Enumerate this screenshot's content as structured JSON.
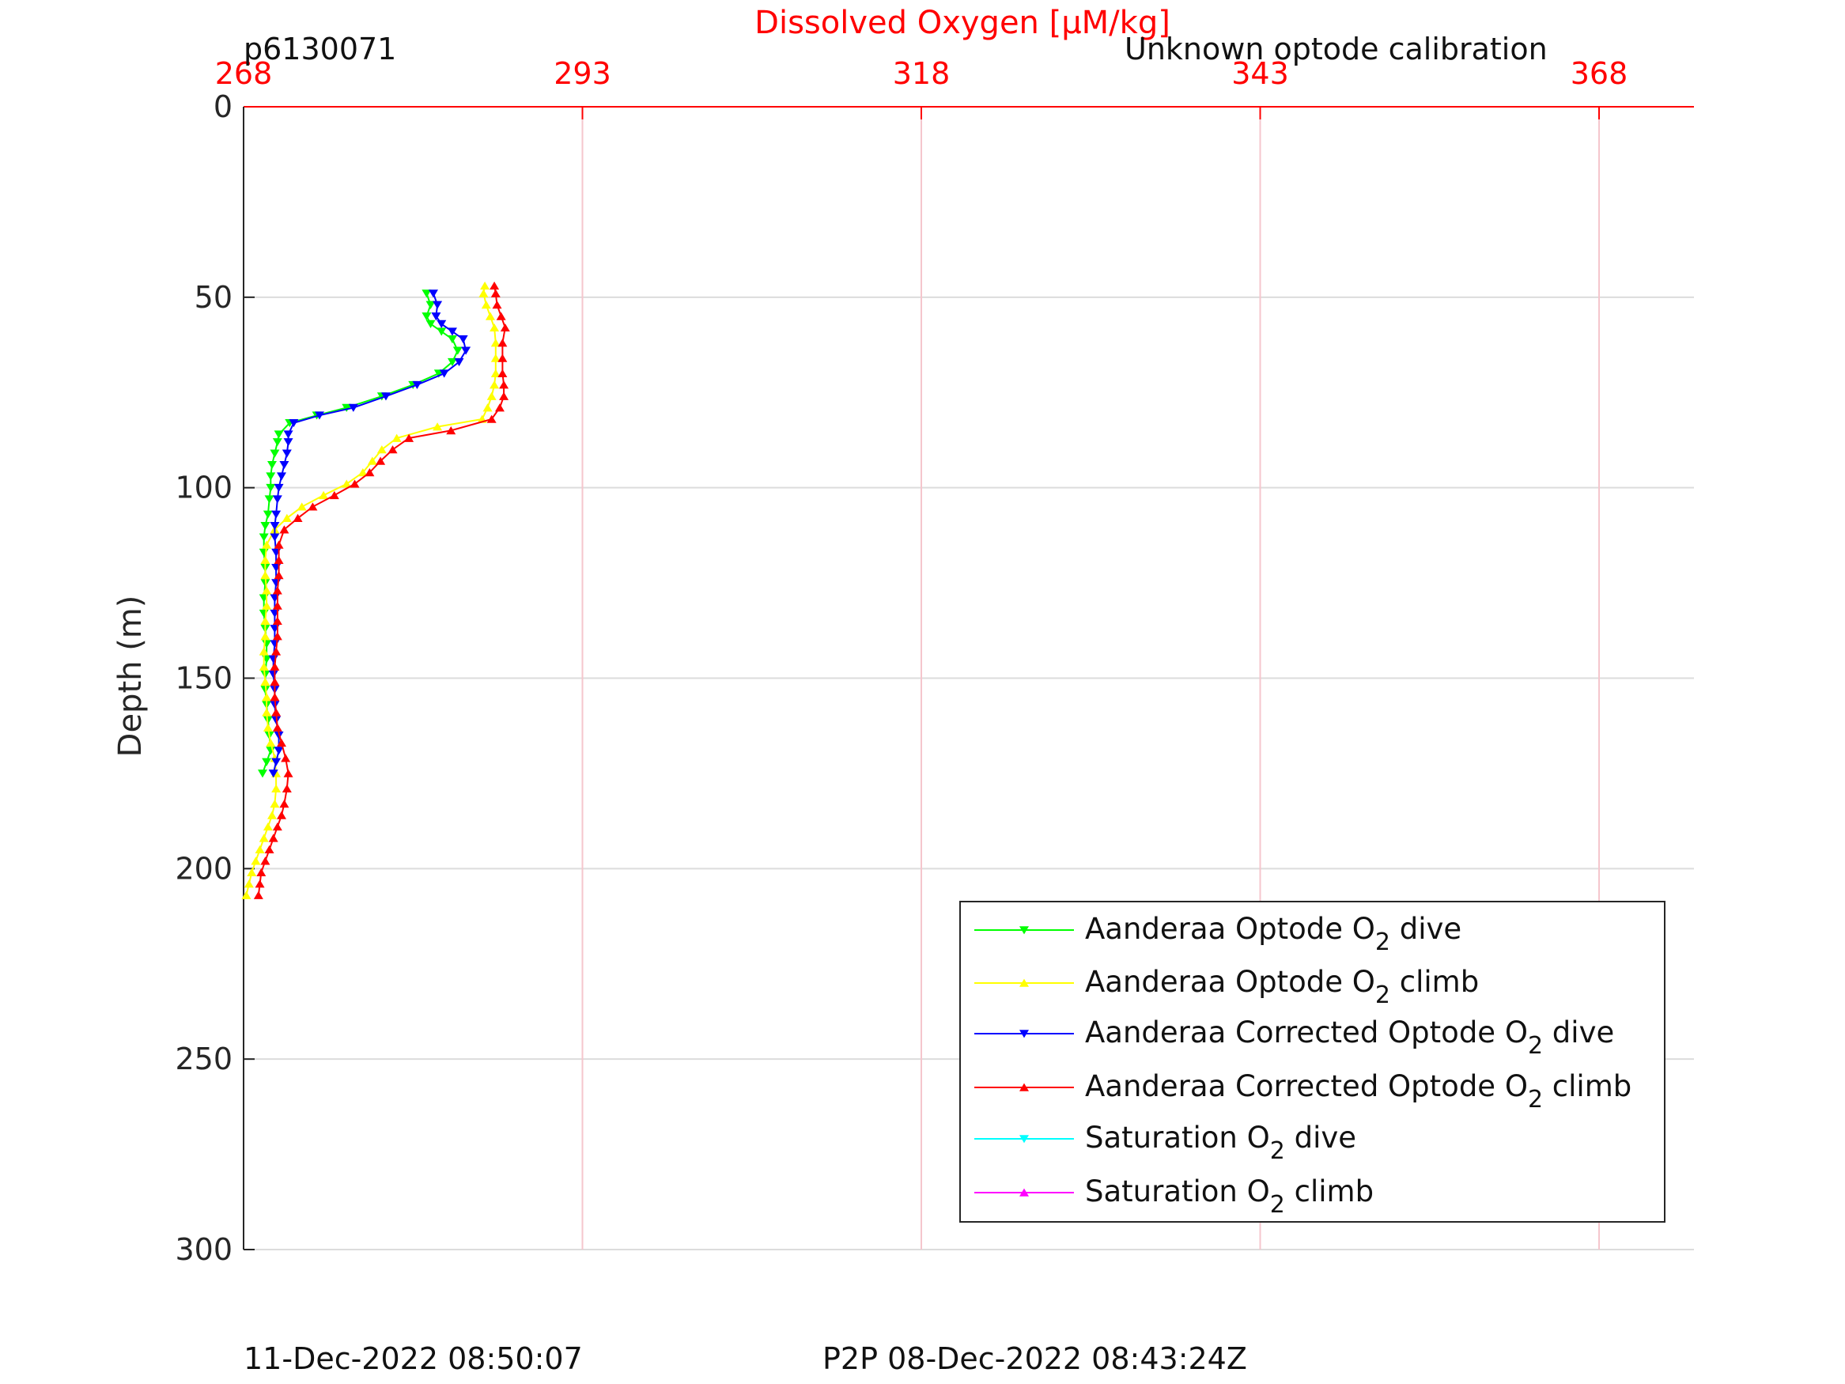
{
  "header": {
    "profile_id": "p6130071",
    "calibration_note": "Unknown optode calibration"
  },
  "footer": {
    "plot_time": "11-Dec-2022 08:50:07",
    "p2p_time": "P2P 08-Dec-2022 08:43:24Z"
  },
  "colors": {
    "top_axis": "#ff0000",
    "green": "#00ff00",
    "yellow": "#ffff00",
    "blue": "#0000ff",
    "red": "#ff0000",
    "cyan": "#00ffff",
    "magenta": "#ff00ff"
  },
  "chart_data": {
    "type": "line",
    "title": "",
    "xlabel": "Dissolved Oxygen [μM/kg]",
    "ylabel": "Depth (m)",
    "xlim": [
      268,
      375
    ],
    "ylim": [
      0,
      300
    ],
    "y_reversed": true,
    "x_axis_position": "top",
    "x_ticks": [
      268,
      293,
      318,
      343,
      368
    ],
    "y_ticks": [
      0,
      50,
      100,
      150,
      200,
      250,
      300
    ],
    "grid": true,
    "legend_position": "bottom-right",
    "legend": [
      {
        "label": "Aanderaa Optode O",
        "sub": "2",
        "suffix": " dive",
        "color": "#00ff00",
        "marker": "down"
      },
      {
        "label": "Aanderaa Optode O",
        "sub": "2",
        "suffix": " climb",
        "color": "#ffff00",
        "marker": "up"
      },
      {
        "label": "Aanderaa Corrected Optode O",
        "sub": "2",
        "suffix": " dive",
        "color": "#0000ff",
        "marker": "down"
      },
      {
        "label": "Aanderaa Corrected Optode O",
        "sub": "2",
        "suffix": " climb",
        "color": "#ff0000",
        "marker": "up"
      },
      {
        "label": "Saturation O",
        "sub": "2",
        "suffix": " dive",
        "color": "#00ffff",
        "marker": "down"
      },
      {
        "label": "Saturation O",
        "sub": "2",
        "suffix": " climb",
        "color": "#ff00ff",
        "marker": "up"
      }
    ],
    "series": [
      {
        "name": "Aanderaa Optode O2 dive",
        "color": "#00ff00",
        "marker": "down",
        "points": [
          [
            281.5,
            49
          ],
          [
            281.8,
            52
          ],
          [
            281.5,
            55
          ],
          [
            281.8,
            57
          ],
          [
            282.6,
            59
          ],
          [
            283.4,
            61
          ],
          [
            283.8,
            64
          ],
          [
            283.4,
            67
          ],
          [
            282.4,
            70
          ],
          [
            280.5,
            73
          ],
          [
            278.2,
            76
          ],
          [
            275.6,
            79
          ],
          [
            273.4,
            81
          ],
          [
            271.4,
            83
          ],
          [
            270.6,
            86
          ],
          [
            270.5,
            88
          ],
          [
            270.3,
            91
          ],
          [
            270.1,
            94
          ],
          [
            270.0,
            97
          ],
          [
            270.0,
            100
          ],
          [
            269.9,
            103
          ],
          [
            269.8,
            107
          ],
          [
            269.6,
            110
          ],
          [
            269.5,
            113
          ],
          [
            269.5,
            117
          ],
          [
            269.6,
            121
          ],
          [
            269.6,
            125
          ],
          [
            269.5,
            129
          ],
          [
            269.5,
            133
          ],
          [
            269.6,
            137
          ],
          [
            269.7,
            141
          ],
          [
            269.7,
            145
          ],
          [
            269.6,
            149
          ],
          [
            269.6,
            153
          ],
          [
            269.7,
            157
          ],
          [
            269.8,
            161
          ],
          [
            269.9,
            165
          ],
          [
            270.0,
            169
          ],
          [
            269.7,
            172
          ],
          [
            269.4,
            175
          ]
        ]
      },
      {
        "name": "Aanderaa Optode O2 climb",
        "color": "#ffff00",
        "marker": "up",
        "points": [
          [
            268.2,
            207
          ],
          [
            268.4,
            204
          ],
          [
            268.6,
            201
          ],
          [
            268.9,
            198
          ],
          [
            269.2,
            195
          ],
          [
            269.5,
            192
          ],
          [
            269.8,
            189
          ],
          [
            270.1,
            186
          ],
          [
            270.3,
            183
          ],
          [
            270.4,
            179
          ],
          [
            270.4,
            175
          ],
          [
            270.3,
            171
          ],
          [
            270.0,
            167
          ],
          [
            269.8,
            163
          ],
          [
            269.7,
            159
          ],
          [
            269.7,
            155
          ],
          [
            269.6,
            151
          ],
          [
            269.5,
            147
          ],
          [
            269.5,
            143
          ],
          [
            269.6,
            139
          ],
          [
            269.6,
            135
          ],
          [
            269.7,
            131
          ],
          [
            269.7,
            127
          ],
          [
            269.6,
            123
          ],
          [
            269.6,
            119
          ],
          [
            269.7,
            115
          ],
          [
            270.3,
            111
          ],
          [
            271.2,
            108
          ],
          [
            272.3,
            105
          ],
          [
            273.9,
            102
          ],
          [
            275.6,
            99
          ],
          [
            276.8,
            96
          ],
          [
            277.5,
            93
          ],
          [
            278.2,
            90
          ],
          [
            279.3,
            87
          ],
          [
            282.3,
            84
          ],
          [
            285.6,
            82
          ],
          [
            286.0,
            79
          ],
          [
            286.3,
            76
          ],
          [
            286.5,
            73
          ],
          [
            286.6,
            70
          ],
          [
            286.6,
            66
          ],
          [
            286.6,
            62
          ],
          [
            286.5,
            58
          ],
          [
            286.2,
            55
          ],
          [
            285.9,
            52
          ],
          [
            285.7,
            49
          ],
          [
            285.8,
            47
          ]
        ]
      },
      {
        "name": "Aanderaa Corrected Optode O2 dive",
        "color": "#0000ff",
        "marker": "down",
        "points": [
          [
            282.0,
            49
          ],
          [
            282.3,
            52
          ],
          [
            282.2,
            55
          ],
          [
            282.6,
            57
          ],
          [
            283.4,
            59
          ],
          [
            284.2,
            61
          ],
          [
            284.4,
            64
          ],
          [
            283.9,
            67
          ],
          [
            282.8,
            70
          ],
          [
            280.8,
            73
          ],
          [
            278.5,
            76
          ],
          [
            276.1,
            79
          ],
          [
            273.6,
            81
          ],
          [
            271.7,
            83
          ],
          [
            271.3,
            86
          ],
          [
            271.3,
            88
          ],
          [
            271.2,
            91
          ],
          [
            271.0,
            94
          ],
          [
            270.8,
            97
          ],
          [
            270.6,
            100
          ],
          [
            270.5,
            103
          ],
          [
            270.4,
            107
          ],
          [
            270.3,
            110
          ],
          [
            270.3,
            113
          ],
          [
            270.4,
            117
          ],
          [
            270.4,
            121
          ],
          [
            270.4,
            125
          ],
          [
            270.3,
            129
          ],
          [
            270.3,
            133
          ],
          [
            270.3,
            137
          ],
          [
            270.3,
            141
          ],
          [
            270.2,
            145
          ],
          [
            270.2,
            149
          ],
          [
            270.3,
            153
          ],
          [
            270.3,
            157
          ],
          [
            270.4,
            161
          ],
          [
            270.6,
            165
          ],
          [
            270.6,
            169
          ],
          [
            270.4,
            172
          ],
          [
            270.2,
            175
          ]
        ]
      },
      {
        "name": "Aanderaa Corrected Optode O2 climb",
        "color": "#ff0000",
        "marker": "up",
        "points": [
          [
            269.1,
            207
          ],
          [
            269.2,
            204
          ],
          [
            269.3,
            201
          ],
          [
            269.6,
            198
          ],
          [
            269.9,
            195
          ],
          [
            270.2,
            192
          ],
          [
            270.5,
            189
          ],
          [
            270.8,
            186
          ],
          [
            271.0,
            183
          ],
          [
            271.2,
            179
          ],
          [
            271.3,
            175
          ],
          [
            271.1,
            171
          ],
          [
            270.8,
            167
          ],
          [
            270.5,
            163
          ],
          [
            270.4,
            159
          ],
          [
            270.3,
            155
          ],
          [
            270.3,
            151
          ],
          [
            270.3,
            147
          ],
          [
            270.4,
            143
          ],
          [
            270.5,
            139
          ],
          [
            270.5,
            135
          ],
          [
            270.5,
            131
          ],
          [
            270.5,
            127
          ],
          [
            270.6,
            123
          ],
          [
            270.6,
            119
          ],
          [
            270.6,
            115
          ],
          [
            271.0,
            111
          ],
          [
            272.0,
            108
          ],
          [
            273.1,
            105
          ],
          [
            274.7,
            102
          ],
          [
            276.2,
            99
          ],
          [
            277.3,
            96
          ],
          [
            278.1,
            93
          ],
          [
            279.0,
            90
          ],
          [
            280.2,
            87
          ],
          [
            283.3,
            85
          ],
          [
            286.3,
            82
          ],
          [
            286.9,
            79
          ],
          [
            287.2,
            76
          ],
          [
            287.2,
            73
          ],
          [
            287.1,
            70
          ],
          [
            287.1,
            66
          ],
          [
            287.1,
            62
          ],
          [
            287.3,
            58
          ],
          [
            287.0,
            55
          ],
          [
            286.7,
            52
          ],
          [
            286.6,
            49
          ],
          [
            286.5,
            47
          ]
        ]
      }
    ]
  }
}
